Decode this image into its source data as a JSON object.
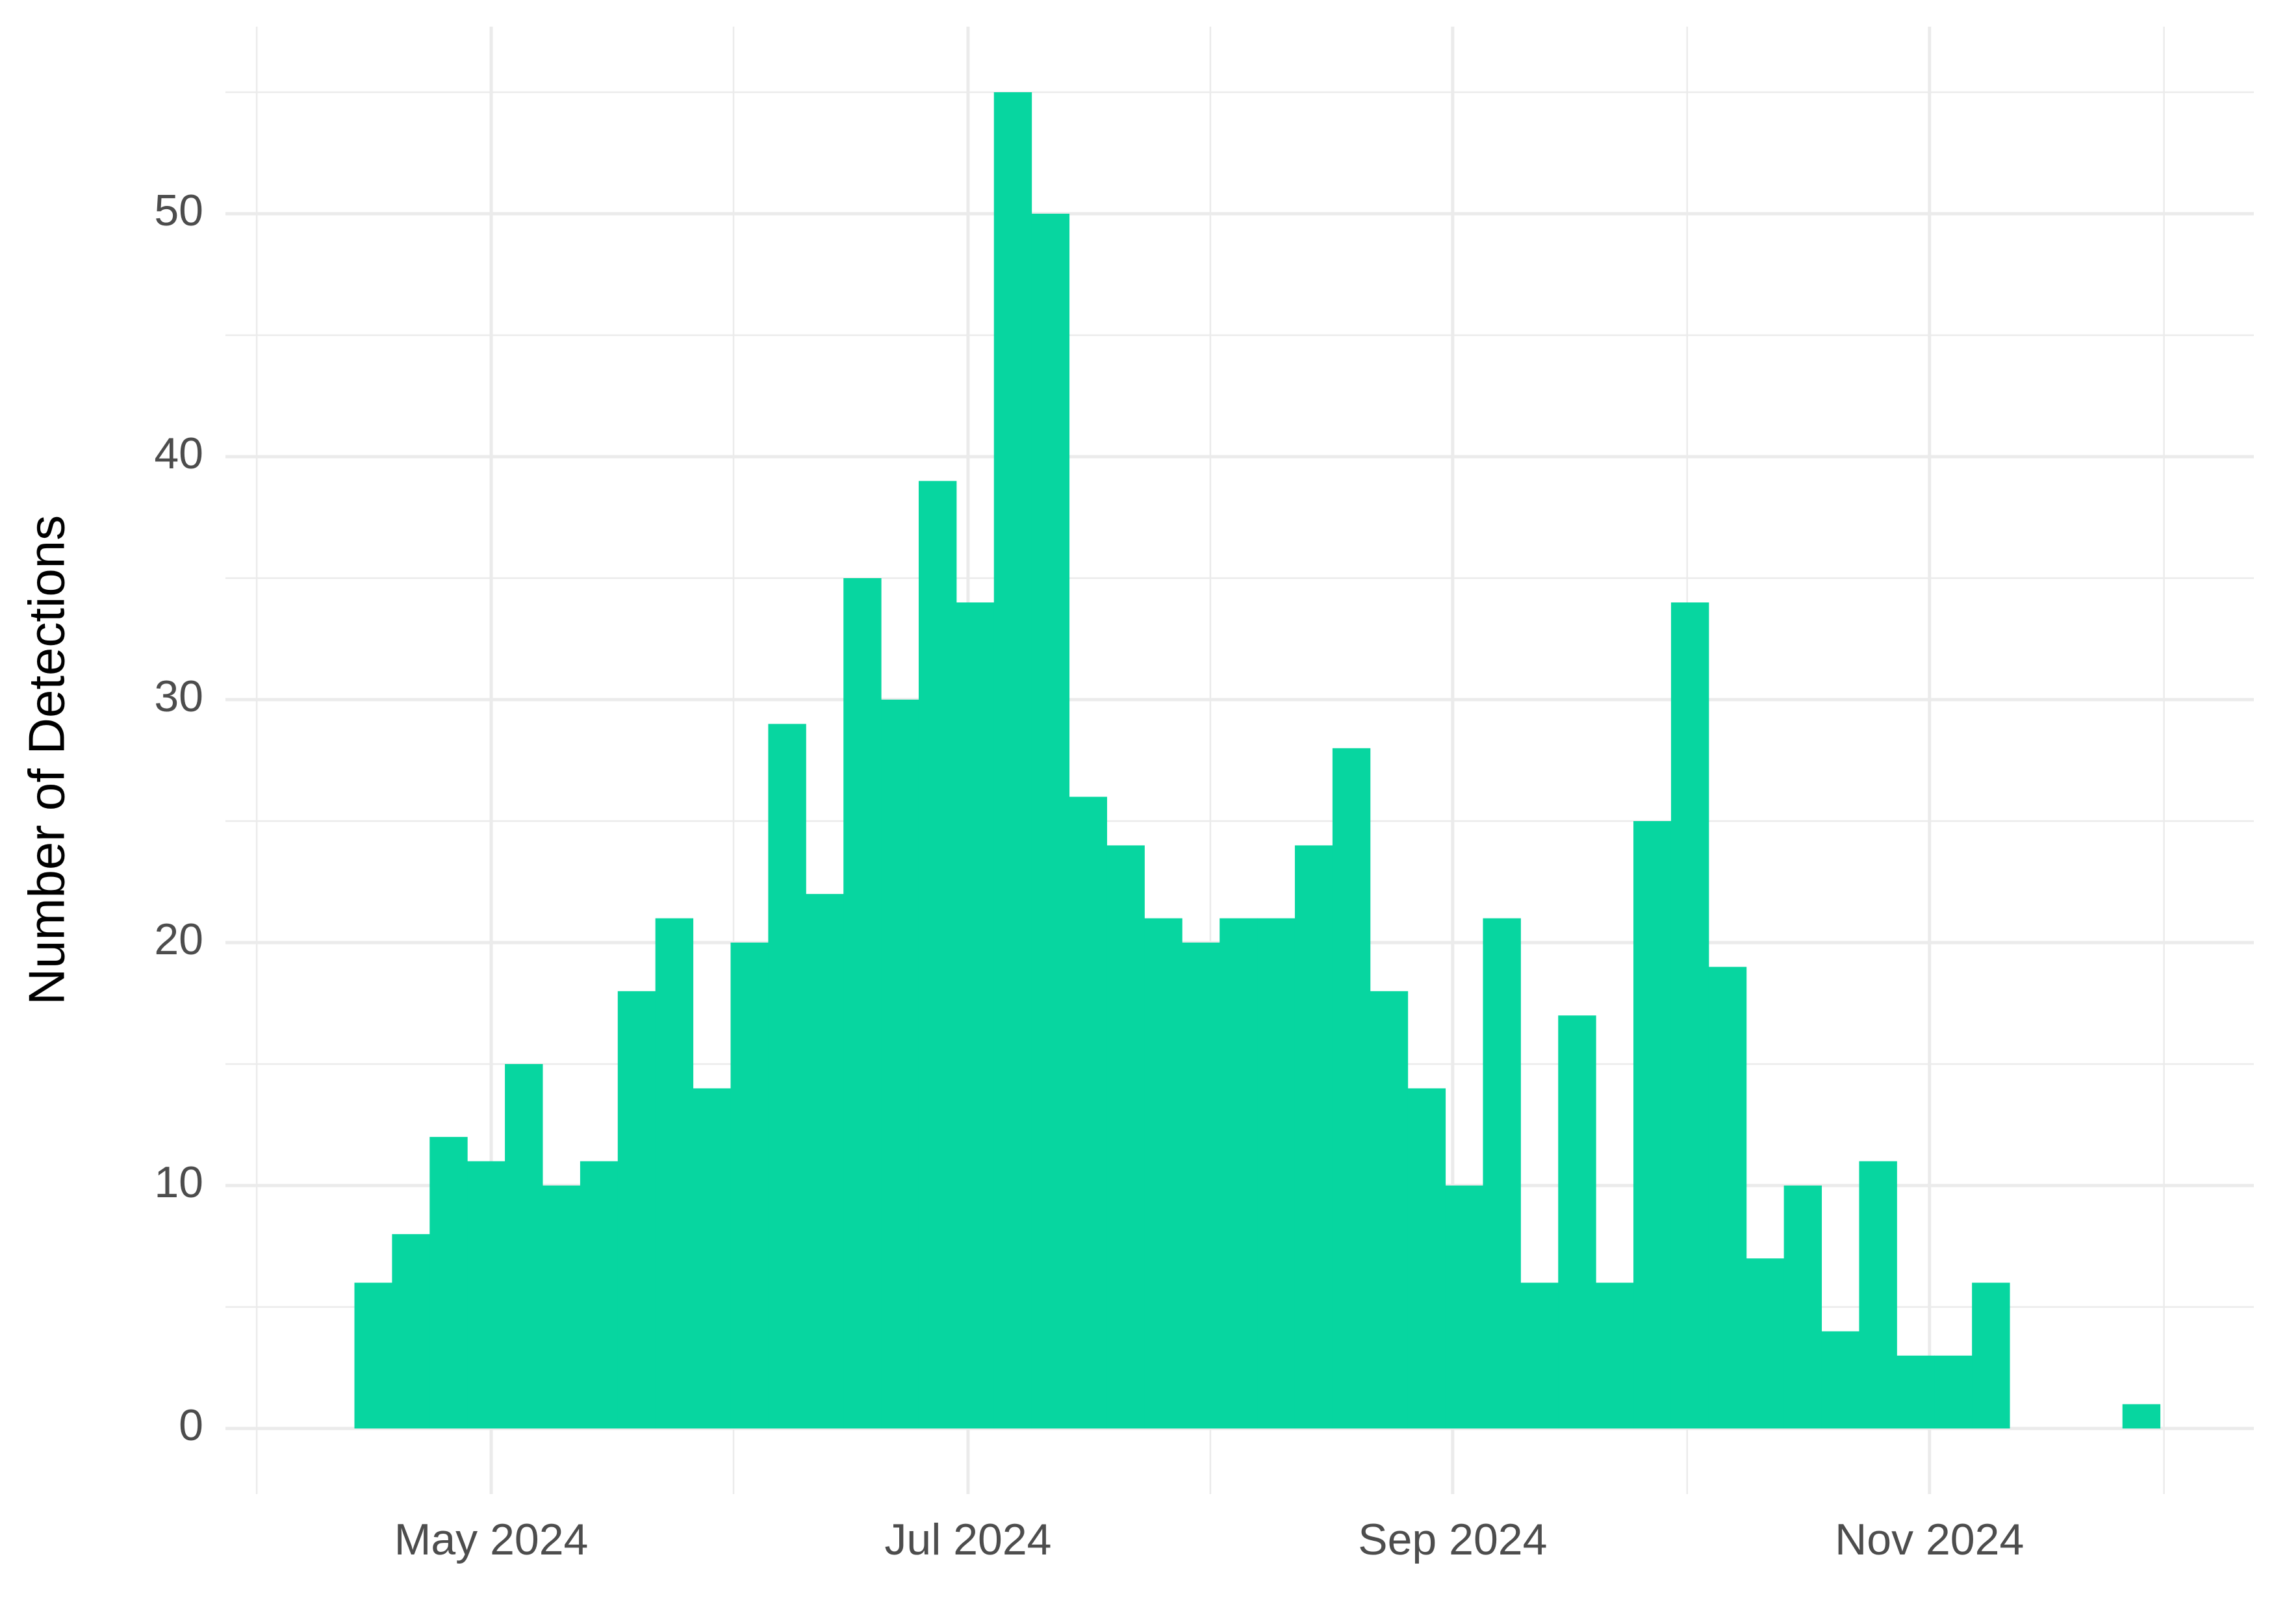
{
  "chart_data": {
    "type": "histogram",
    "ylabel": "Number of Detections",
    "color": "#07d6a0",
    "bins": [
      "2024-04-13T12:00",
      "2024-04-18T07:30",
      "2024-04-23T03:00",
      "2024-04-27T22:30",
      "2024-05-02T18:00",
      "2024-05-07T13:30",
      "2024-05-12T09:00",
      "2024-05-17T04:30",
      "2024-05-22T00:00",
      "2024-05-26T19:30",
      "2024-05-31T15:00",
      "2024-06-05T10:30",
      "2024-06-10T06:00",
      "2024-06-15T01:30",
      "2024-06-19T21:00",
      "2024-06-24T16:30",
      "2024-06-29T12:00",
      "2024-07-04T07:30",
      "2024-07-09T03:00",
      "2024-07-13T22:30",
      "2024-07-18T18:00",
      "2024-07-23T13:30",
      "2024-07-28T09:00",
      "2024-08-02T04:30",
      "2024-08-07T00:00",
      "2024-08-11T19:30",
      "2024-08-16T15:00",
      "2024-08-21T10:30",
      "2024-08-26T06:00",
      "2024-08-31T01:30",
      "2024-09-04T21:00",
      "2024-09-09T16:30",
      "2024-09-14T12:00",
      "2024-09-19T07:30",
      "2024-09-24T03:00",
      "2024-09-28T22:30",
      "2024-10-03T18:00",
      "2024-10-08T13:30",
      "2024-10-13T09:00",
      "2024-10-18T04:30",
      "2024-10-23T00:00",
      "2024-10-27T19:30",
      "2024-11-01T15:00",
      "2024-11-06T10:30",
      "2024-11-11T06:00",
      "2024-11-16T01:30",
      "2024-11-20T21:00",
      "2024-11-25T16:30",
      "2024-11-30T12:00"
    ],
    "values": [
      6,
      8,
      12,
      11,
      15,
      10,
      11,
      18,
      21,
      14,
      20,
      29,
      22,
      35,
      30,
      39,
      34,
      55,
      50,
      26,
      24,
      21,
      20,
      21,
      21,
      24,
      28,
      18,
      14,
      10,
      21,
      6,
      17,
      6,
      25,
      34,
      19,
      7,
      10,
      4,
      11,
      3,
      3,
      6,
      0,
      0,
      0,
      1
    ],
    "xlim": [
      "2024-03-28T00:00",
      "2024-12-12T12:00"
    ],
    "xticks": [
      {
        "value": "2024-05-01T00:00",
        "label": "May 2024"
      },
      {
        "value": "2024-07-01T00:00",
        "label": "Jul 2024"
      },
      {
        "value": "2024-09-01T00:00",
        "label": "Sep 2024"
      },
      {
        "value": "2024-11-01T00:00",
        "label": "Nov 2024"
      }
    ],
    "xminorticks": [
      "2024-04-01T00:00",
      "2024-06-01T00:00",
      "2024-08-01T00:00",
      "2024-10-01T00:00",
      "2024-12-01T00:00"
    ],
    "ylim": [
      -2.7,
      57.7
    ],
    "yticks": [
      0,
      10,
      20,
      30,
      40,
      50
    ],
    "yminorticks": [
      5,
      15,
      25,
      35,
      45,
      55
    ],
    "grid": true
  }
}
